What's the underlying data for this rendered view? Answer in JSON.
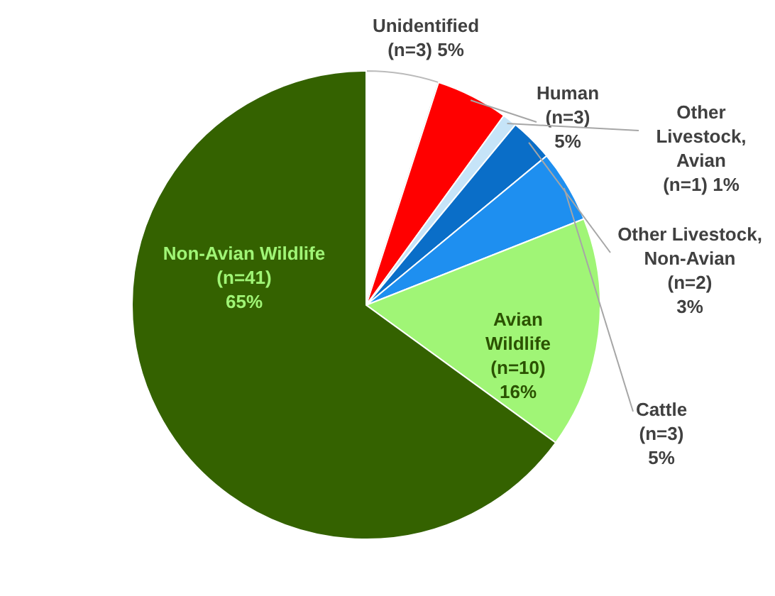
{
  "chart_data": {
    "type": "pie",
    "categories": [
      "Unidentified",
      "Human",
      "Other Livestock, Avian",
      "Other Livestock, Non-Avian",
      "Cattle",
      "Avian Wildlife",
      "Non-Avian Wildlife"
    ],
    "values": [
      5,
      5,
      1,
      3,
      5,
      16,
      65
    ],
    "value_labels": [
      "(n=3) 5%",
      "(n=3) 5%",
      "(n=1) 1%",
      "(n=2) 3%",
      "(n=3) 5%",
      "(n=10) 16%",
      "(n=41) 65%"
    ],
    "colors": [
      "#ffffff",
      "#ff0000",
      "#c6e4f8",
      "#0a6ec8",
      "#1e8ff0",
      "#a0f576",
      "#346200"
    ],
    "legend": false
  }
}
